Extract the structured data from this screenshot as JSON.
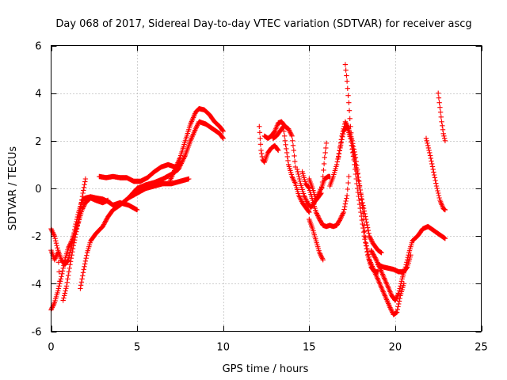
{
  "chart_data": {
    "type": "scatter",
    "title": "Day 068 of 2017, Sidereal Day-to-day VTEC variation (SDTVAR) for receiver ascg",
    "xlabel": "GPS time / hours",
    "ylabel": "SDTVAR / TECUs",
    "xlim": [
      0,
      25
    ],
    "ylim": [
      -6,
      6
    ],
    "xticks": [
      0,
      5,
      10,
      15,
      20,
      25
    ],
    "yticks": [
      -6,
      -4,
      -2,
      0,
      2,
      4,
      6
    ],
    "xtick_labels": [
      "0",
      "5",
      "10",
      "15",
      "20",
      "25"
    ],
    "ytick_labels": [
      "-6",
      "-4",
      "-2",
      "0",
      "2",
      "4",
      "6"
    ],
    "grid": true,
    "marker": "plus",
    "color": "#ff0000",
    "series": [
      {
        "name": "t1",
        "points": [
          [
            0.0,
            -1.7
          ],
          [
            0.2,
            -2.0
          ],
          [
            0.4,
            -2.6
          ],
          [
            0.6,
            -3.0
          ],
          [
            0.8,
            -3.2
          ],
          [
            1.0,
            -3.0
          ],
          [
            1.2,
            -2.4
          ],
          [
            1.4,
            -1.6
          ],
          [
            1.6,
            -1.0
          ],
          [
            1.8,
            -0.5
          ],
          [
            2.0,
            -0.4
          ],
          [
            2.3,
            -0.35
          ],
          [
            2.6,
            -0.4
          ],
          [
            3.0,
            -0.45
          ],
          [
            3.3,
            -0.55
          ],
          [
            3.6,
            -0.7
          ],
          [
            4.0,
            -0.6
          ],
          [
            4.5,
            -0.7
          ],
          [
            5.0,
            -0.9
          ]
        ]
      },
      {
        "name": "t2",
        "points": [
          [
            0.0,
            -5.1
          ],
          [
            0.2,
            -4.8
          ],
          [
            0.4,
            -4.3
          ],
          [
            0.6,
            -3.7
          ],
          [
            0.8,
            -3.0
          ],
          [
            1.0,
            -2.5
          ],
          [
            1.2,
            -2.2
          ],
          [
            1.4,
            -1.8
          ],
          [
            1.6,
            -1.4
          ],
          [
            1.8,
            -0.9
          ],
          [
            2.0,
            -0.6
          ],
          [
            2.3,
            -0.4
          ],
          [
            2.6,
            -0.5
          ],
          [
            3.0,
            -0.6
          ],
          [
            3.3,
            -0.5
          ]
        ]
      },
      {
        "name": "t3",
        "points": [
          [
            0.0,
            -2.6
          ],
          [
            0.2,
            -3.0
          ],
          [
            0.4,
            -2.7
          ],
          [
            0.5,
            -3.9
          ]
        ]
      },
      {
        "name": "t4",
        "points": [
          [
            0.7,
            -4.7
          ],
          [
            0.9,
            -4.1
          ],
          [
            1.1,
            -3.2
          ],
          [
            1.3,
            -2.4
          ],
          [
            1.5,
            -1.7
          ],
          [
            1.7,
            -0.9
          ],
          [
            1.85,
            -0.2
          ],
          [
            2.0,
            0.4
          ]
        ]
      },
      {
        "name": "t5",
        "points": [
          [
            1.7,
            -4.2
          ],
          [
            1.9,
            -3.4
          ],
          [
            2.1,
            -2.7
          ],
          [
            2.3,
            -2.2
          ],
          [
            2.6,
            -1.9
          ],
          [
            3.0,
            -1.6
          ],
          [
            3.3,
            -1.2
          ],
          [
            3.6,
            -0.9
          ],
          [
            4.0,
            -0.7
          ],
          [
            4.5,
            -0.4
          ],
          [
            5.0,
            -0.2
          ],
          [
            5.5,
            0.0
          ],
          [
            6.0,
            0.1
          ],
          [
            6.5,
            0.2
          ],
          [
            7.0,
            0.2
          ],
          [
            7.5,
            0.3
          ],
          [
            8.0,
            0.4
          ]
        ]
      },
      {
        "name": "t6",
        "points": [
          [
            2.8,
            0.5
          ],
          [
            3.2,
            0.45
          ],
          [
            3.6,
            0.5
          ],
          [
            4.0,
            0.45
          ],
          [
            4.4,
            0.45
          ],
          [
            4.8,
            0.3
          ],
          [
            5.2,
            0.3
          ],
          [
            5.6,
            0.45
          ],
          [
            6.0,
            0.7
          ],
          [
            6.4,
            0.9
          ],
          [
            6.8,
            1.0
          ],
          [
            7.2,
            0.9
          ],
          [
            7.5,
            1.0
          ]
        ]
      },
      {
        "name": "t7",
        "points": [
          [
            4.5,
            -0.4
          ],
          [
            5.0,
            0.0
          ],
          [
            5.5,
            0.15
          ],
          [
            6.0,
            0.25
          ],
          [
            6.5,
            0.4
          ],
          [
            7.0,
            0.6
          ],
          [
            7.4,
            0.8
          ],
          [
            7.8,
            1.4
          ],
          [
            8.1,
            2.0
          ],
          [
            8.4,
            2.5
          ],
          [
            8.6,
            2.8
          ],
          [
            8.8,
            2.75
          ],
          [
            9.0,
            2.7
          ],
          [
            9.4,
            2.5
          ],
          [
            9.8,
            2.3
          ],
          [
            10.0,
            2.1
          ]
        ]
      },
      {
        "name": "t8",
        "points": [
          [
            6.9,
            0.3
          ],
          [
            7.2,
            0.8
          ],
          [
            7.5,
            1.3
          ],
          [
            7.8,
            2.0
          ],
          [
            8.1,
            2.7
          ],
          [
            8.4,
            3.2
          ],
          [
            8.6,
            3.35
          ],
          [
            8.9,
            3.3
          ],
          [
            9.2,
            3.1
          ],
          [
            9.5,
            2.8
          ],
          [
            9.8,
            2.6
          ],
          [
            10.0,
            2.4
          ]
        ]
      },
      {
        "name": "t9",
        "points": [
          [
            12.1,
            2.6
          ],
          [
            12.15,
            2.1
          ],
          [
            12.2,
            1.6
          ],
          [
            12.3,
            1.2
          ],
          [
            12.4,
            1.1
          ],
          [
            12.6,
            1.5
          ],
          [
            12.8,
            1.7
          ],
          [
            13.0,
            1.8
          ],
          [
            13.2,
            1.6
          ]
        ]
      },
      {
        "name": "t10",
        "points": [
          [
            12.4,
            2.2
          ],
          [
            12.6,
            2.1
          ],
          [
            12.8,
            2.2
          ],
          [
            13.0,
            2.4
          ],
          [
            13.2,
            2.75
          ],
          [
            13.4,
            2.8
          ],
          [
            13.6,
            2.6
          ],
          [
            13.8,
            2.5
          ],
          [
            14.0,
            2.2
          ],
          [
            14.1,
            1.6
          ],
          [
            14.2,
            0.9
          ]
        ]
      },
      {
        "name": "t11",
        "points": [
          [
            12.9,
            2.1
          ],
          [
            13.1,
            2.2
          ],
          [
            13.3,
            2.4
          ],
          [
            13.5,
            2.6
          ],
          [
            13.6,
            2.0
          ],
          [
            13.7,
            1.5
          ],
          [
            13.8,
            1.0
          ],
          [
            14.0,
            0.5
          ],
          [
            14.2,
            0.2
          ],
          [
            14.4,
            -0.3
          ],
          [
            14.6,
            -0.6
          ],
          [
            14.8,
            -0.8
          ],
          [
            15.0,
            -1.0
          ]
        ]
      },
      {
        "name": "t12",
        "points": [
          [
            14.3,
            0.8
          ],
          [
            14.5,
            0.2
          ],
          [
            14.7,
            -0.3
          ],
          [
            14.9,
            -0.6
          ],
          [
            15.1,
            -0.8
          ],
          [
            15.3,
            -0.6
          ],
          [
            15.5,
            -0.3
          ],
          [
            15.7,
            0.0
          ],
          [
            15.9,
            0.4
          ],
          [
            16.1,
            0.5
          ],
          [
            16.2,
            0.5
          ]
        ]
      },
      {
        "name": "t13",
        "points": [
          [
            14.6,
            0.7
          ],
          [
            14.8,
            0.2
          ],
          [
            15.0,
            0.0
          ],
          [
            15.2,
            -0.5
          ],
          [
            15.4,
            -1.0
          ],
          [
            15.6,
            -1.3
          ],
          [
            15.8,
            -1.55
          ],
          [
            16.0,
            -1.6
          ],
          [
            16.2,
            -1.55
          ],
          [
            16.4,
            -1.6
          ],
          [
            16.6,
            -1.55
          ],
          [
            16.8,
            -1.3
          ],
          [
            17.0,
            -1.0
          ],
          [
            17.2,
            -0.3
          ],
          [
            17.3,
            0.5
          ]
        ]
      },
      {
        "name": "t14",
        "points": [
          [
            15.0,
            -1.3
          ],
          [
            15.2,
            -1.7
          ],
          [
            15.4,
            -2.2
          ],
          [
            15.6,
            -2.7
          ],
          [
            15.8,
            -3.0
          ]
        ]
      },
      {
        "name": "t15",
        "points": [
          [
            15.0,
            0.4
          ],
          [
            15.2,
            0.0
          ],
          [
            15.4,
            -0.5
          ],
          [
            15.5,
            -0.4
          ],
          [
            15.7,
            -0.2
          ],
          [
            15.8,
            0.5
          ],
          [
            15.9,
            1.3
          ],
          [
            16.0,
            1.9
          ]
        ]
      },
      {
        "name": "t16",
        "points": [
          [
            16.2,
            0.1
          ],
          [
            16.4,
            0.5
          ],
          [
            16.6,
            1.0
          ],
          [
            16.8,
            1.7
          ],
          [
            17.0,
            2.4
          ],
          [
            17.2,
            2.6
          ],
          [
            17.4,
            2.1
          ],
          [
            17.6,
            1.2
          ],
          [
            17.8,
            0.0
          ],
          [
            18.0,
            -1.0
          ],
          [
            18.2,
            -2.0
          ],
          [
            18.4,
            -2.8
          ],
          [
            18.6,
            -3.3
          ],
          [
            18.8,
            -3.5
          ],
          [
            19.0,
            -3.5
          ]
        ]
      },
      {
        "name": "t17",
        "points": [
          [
            17.1,
            5.2
          ],
          [
            17.2,
            4.5
          ],
          [
            17.3,
            3.6
          ],
          [
            17.4,
            2.6
          ],
          [
            17.5,
            1.8
          ],
          [
            17.7,
            1.0
          ],
          [
            17.9,
            0.2
          ],
          [
            18.1,
            -0.6
          ],
          [
            18.3,
            -1.3
          ],
          [
            18.5,
            -2.0
          ],
          [
            18.7,
            -2.3
          ],
          [
            19.0,
            -2.6
          ],
          [
            19.2,
            -2.7
          ]
        ]
      },
      {
        "name": "t18",
        "points": [
          [
            16.7,
            1.3
          ],
          [
            16.9,
            2.2
          ],
          [
            17.1,
            2.8
          ],
          [
            17.3,
            2.5
          ],
          [
            17.5,
            2.0
          ],
          [
            17.7,
            1.3
          ],
          [
            17.9,
            0.3
          ],
          [
            18.1,
            -0.8
          ],
          [
            18.3,
            -2.3
          ],
          [
            18.5,
            -3.0
          ],
          [
            18.8,
            -3.5
          ],
          [
            19.1,
            -4.0
          ],
          [
            19.4,
            -4.5
          ],
          [
            19.7,
            -5.0
          ],
          [
            19.9,
            -5.3
          ],
          [
            20.1,
            -5.2
          ],
          [
            20.3,
            -4.5
          ],
          [
            20.5,
            -4.0
          ]
        ]
      },
      {
        "name": "t19",
        "points": [
          [
            18.6,
            -2.6
          ],
          [
            18.9,
            -3.0
          ],
          [
            19.2,
            -3.5
          ],
          [
            19.5,
            -4.0
          ],
          [
            19.8,
            -4.5
          ],
          [
            20.0,
            -4.7
          ],
          [
            20.2,
            -4.4
          ],
          [
            20.4,
            -3.8
          ],
          [
            20.6,
            -3.3
          ],
          [
            20.8,
            -2.7
          ],
          [
            21.0,
            -2.2
          ],
          [
            21.3,
            -2.0
          ],
          [
            21.6,
            -1.7
          ],
          [
            21.9,
            -1.6
          ],
          [
            22.2,
            -1.75
          ],
          [
            22.5,
            -1.9
          ],
          [
            22.8,
            -2.05
          ],
          [
            22.9,
            -2.1
          ]
        ]
      },
      {
        "name": "t20",
        "points": [
          [
            19.0,
            -3.2
          ],
          [
            19.3,
            -3.3
          ],
          [
            19.6,
            -3.35
          ],
          [
            19.9,
            -3.4
          ],
          [
            20.2,
            -3.5
          ],
          [
            20.5,
            -3.5
          ],
          [
            20.7,
            -3.3
          ],
          [
            20.9,
            -2.8
          ]
        ]
      },
      {
        "name": "t21",
        "points": [
          [
            21.8,
            2.1
          ],
          [
            22.0,
            1.5
          ],
          [
            22.2,
            0.8
          ],
          [
            22.4,
            0.1
          ],
          [
            22.6,
            -0.5
          ],
          [
            22.8,
            -0.85
          ],
          [
            22.9,
            -0.9
          ]
        ]
      },
      {
        "name": "t22",
        "points": [
          [
            22.5,
            4.0
          ],
          [
            22.6,
            3.4
          ],
          [
            22.7,
            2.8
          ],
          [
            22.8,
            2.3
          ],
          [
            22.9,
            2.0
          ]
        ]
      }
    ]
  }
}
